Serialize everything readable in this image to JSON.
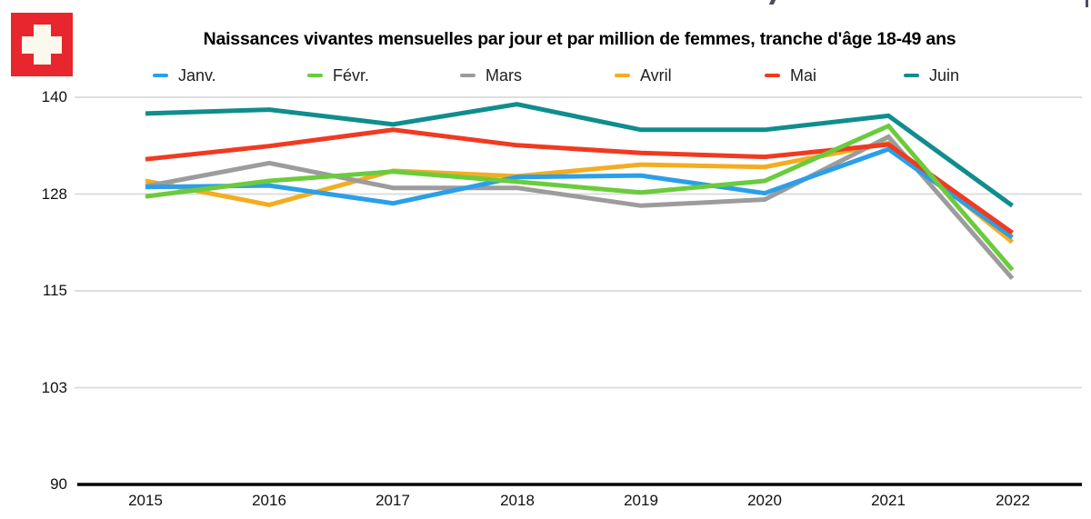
{
  "flag": {
    "name": "swiss-flag",
    "red": "#E8262D",
    "cross_color": "#FBF9EE"
  },
  "chart_data": {
    "type": "line",
    "title": "Naissances vivantes mensuelles par jour et par million de femmes, tranche d'âge 18-49 ans",
    "categories": [
      "2015",
      "2016",
      "2017",
      "2018",
      "2019",
      "2020",
      "2021",
      "2022"
    ],
    "xlabel": "",
    "ylabel": "",
    "ylim": [
      90,
      140
    ],
    "y_axis": {
      "min": 90,
      "max": 140,
      "tick_values": [
        140,
        127.5,
        115,
        102.5,
        90
      ],
      "tick_labels": [
        "140",
        "128",
        "115",
        "103",
        "90"
      ]
    },
    "grid": "horizontal-light-gray",
    "legend_position": "top",
    "series": [
      {
        "name": "Janv.",
        "color": "#2B9FE8",
        "values": [
          128.4,
          128.6,
          126.3,
          129.7,
          129.9,
          127.6,
          133.3,
          121.9
        ]
      },
      {
        "name": "Févr.",
        "color": "#6BCB3D",
        "values": [
          127.2,
          129.2,
          130.4,
          129.1,
          127.7,
          129.2,
          136.3,
          117.7
        ]
      },
      {
        "name": "Mars",
        "color": "#9C9C9C",
        "values": [
          128.5,
          131.5,
          128.3,
          128.3,
          126.0,
          126.8,
          134.9,
          116.6
        ]
      },
      {
        "name": "Avril",
        "color": "#F3AD21",
        "values": [
          129.2,
          126.1,
          130.5,
          129.8,
          131.3,
          131.0,
          134.1,
          121.3
        ]
      },
      {
        "name": "Mai",
        "color": "#F03A21",
        "values": [
          132.0,
          133.7,
          135.8,
          133.8,
          132.8,
          132.3,
          133.9,
          122.5
        ]
      },
      {
        "name": "Juin",
        "color": "#108D8D",
        "values": [
          137.9,
          138.4,
          136.5,
          139.1,
          135.8,
          135.8,
          137.6,
          126.0
        ]
      }
    ],
    "z_order": [
      3,
      2,
      0,
      4,
      1,
      5
    ],
    "line_width": 5,
    "axis_color": "#000000",
    "gridline_color": "#DADADA"
  }
}
